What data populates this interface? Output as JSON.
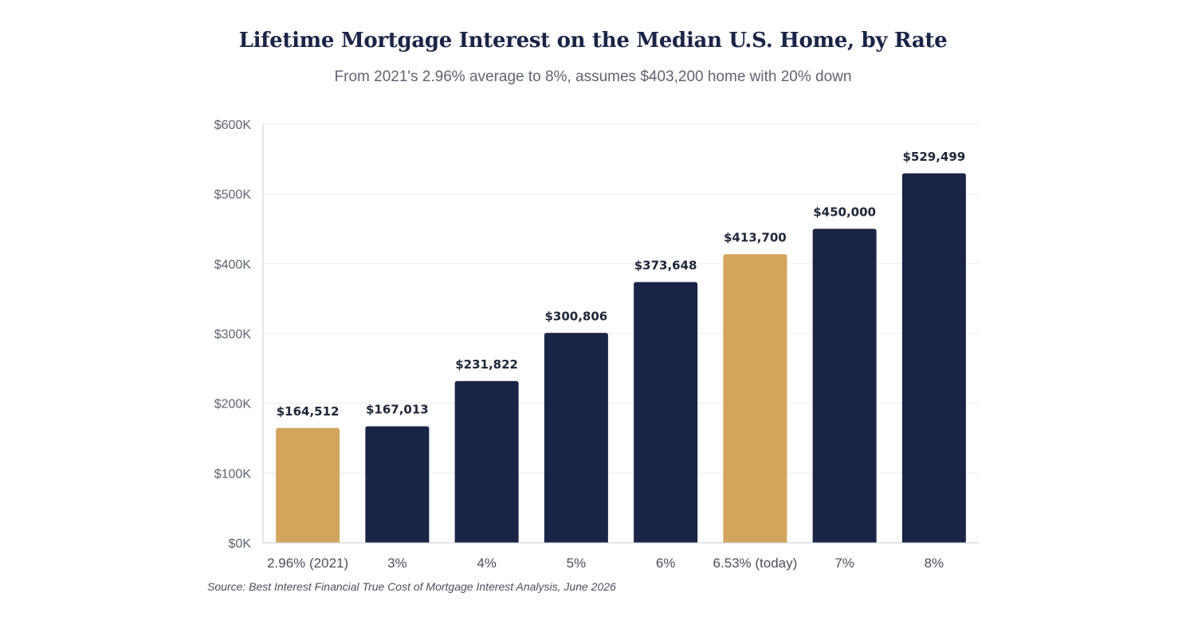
{
  "chart_data": {
    "type": "bar",
    "title": "Lifetime Mortgage Interest on the Median U.S. Home, by Rate",
    "subtitle": "From 2021's 2.96% average to 8%, assumes $403,200 home with 20% down",
    "categories": [
      "2.96% (2021)",
      "3%",
      "4%",
      "5%",
      "6%",
      "6.53% (today)",
      "7%",
      "8%"
    ],
    "values": [
      164512,
      167013,
      231822,
      300806,
      373648,
      413700,
      450000,
      529499
    ],
    "data_labels": [
      "$164,512",
      "$167,013",
      "$231,822",
      "$300,806",
      "$373,648",
      "$413,700",
      "$450,000",
      "$529,499"
    ],
    "highlighted": [
      true,
      false,
      false,
      false,
      false,
      true,
      false,
      false
    ],
    "xlabel": "",
    "ylabel": "",
    "ylim": [
      0,
      600000
    ],
    "yticks": [
      0,
      100000,
      200000,
      300000,
      400000,
      500000,
      600000
    ],
    "ytick_labels": [
      "$0K",
      "$100K",
      "$200K",
      "$300K",
      "$400K",
      "$500K",
      "$600K"
    ],
    "grid": true,
    "legend": "none",
    "source": "Source: Best Interest Financial True Cost of Mortgage Interest Analysis, June 2026"
  },
  "colors": {
    "bar": "#1a2447",
    "highlight": "#d3a55c",
    "grid": "#ececef",
    "axis": "#c9ccd3"
  }
}
